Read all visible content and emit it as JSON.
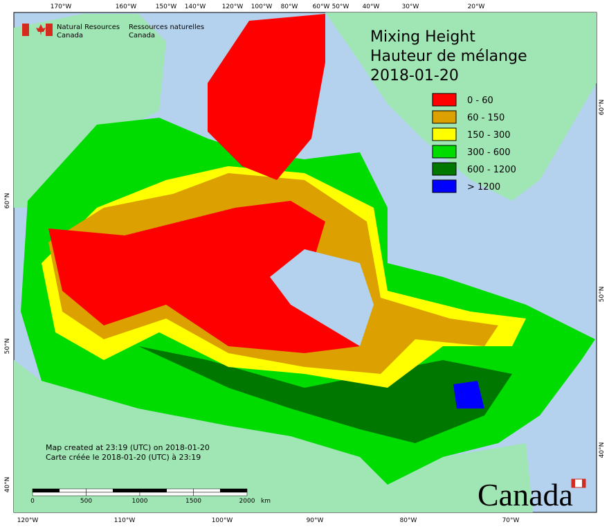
{
  "header": {
    "agency_en": [
      "Natural Resources",
      "Canada"
    ],
    "agency_fr": [
      "Ressources naturelles",
      "Canada"
    ]
  },
  "title": [
    "Mixing Height",
    "Hauteur de mélange",
    "2018-01-20"
  ],
  "legend": [
    {
      "label": "0 - 60",
      "color": "#ff0000"
    },
    {
      "label": "60 - 150",
      "color": "#dca000"
    },
    {
      "label": "150 - 300",
      "color": "#ffff00"
    },
    {
      "label": "300 - 600",
      "color": "#00dc00"
    },
    {
      "label": "600 - 1200",
      "color": "#007800"
    },
    {
      "label": "> 1200",
      "color": "#0000ff"
    }
  ],
  "top_longitudes": [
    "170°W",
    "160°W",
    "150°W",
    "140°W",
    "120°W",
    "100°W",
    "80°W",
    "60°W",
    "50°W",
    "40°W",
    "30°W",
    "20°W"
  ],
  "bottom_longitudes": [
    "120°W",
    "110°W",
    "100°W",
    "90°W",
    "80°W",
    "70°W"
  ],
  "left_latitudes": [
    "60°N",
    "50°N",
    "40°N"
  ],
  "right_latitudes": [
    "60°N",
    "50°N",
    "40°N"
  ],
  "credits": [
    "Map created at 23:19 (UTC) on 2018-01-20",
    "Carte créée le 2018-01-20 (UTC) à 23:19"
  ],
  "scale_bar": {
    "labels": [
      0,
      500,
      1000,
      1500,
      2000
    ],
    "unit": "km"
  },
  "wordmark": "Canada"
}
